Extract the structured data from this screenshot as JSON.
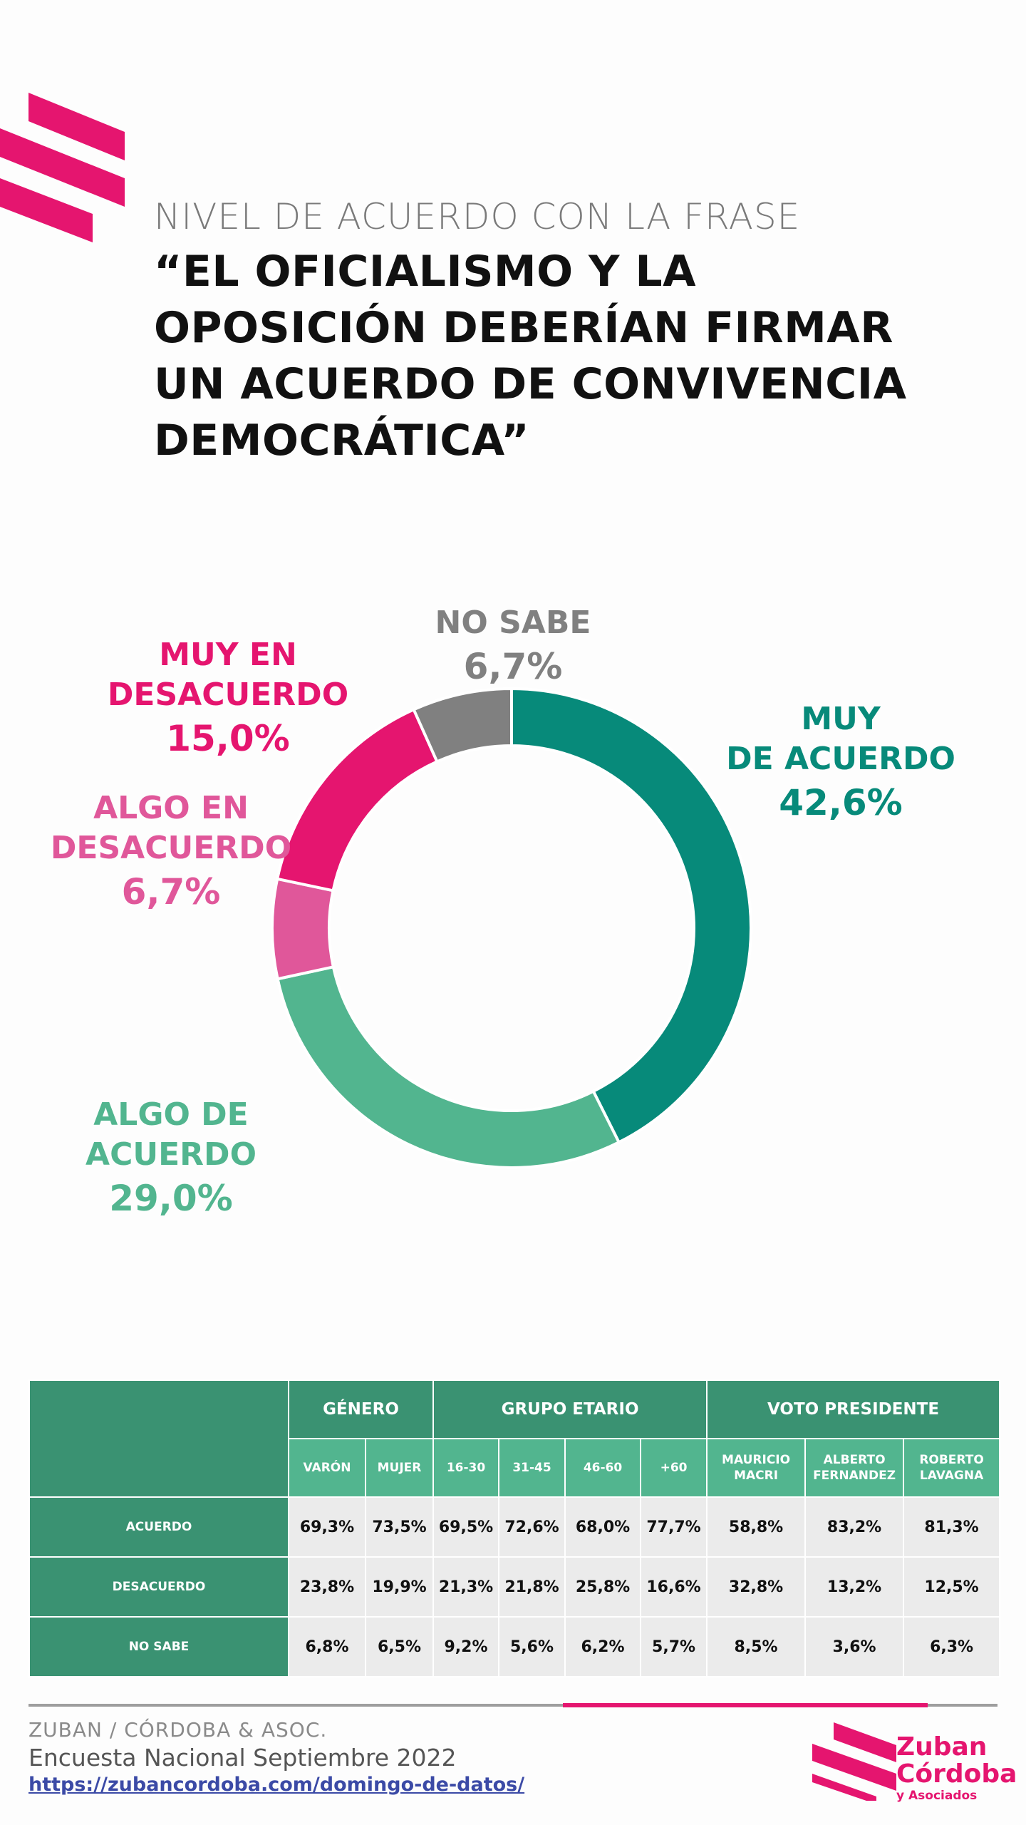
{
  "header": {
    "subtitle": "NIVEL DE ACUERDO CON LA FRASE",
    "title": "“EL OFICIALISMO Y LA\nOPOSICIÓN DEBERÍAN FIRMAR\nUN ACUERDO DE CONVIVENCIA\nDEMOCRÁTICA”"
  },
  "chart_data": {
    "type": "pie",
    "donut": true,
    "start": "12 o'clock",
    "direction": "clockwise",
    "slices": [
      {
        "label": "MUY\nDE ACUERDO",
        "value": 42.6,
        "display": "42,6%",
        "color": "#078a7a"
      },
      {
        "label": "ALGO DE\nACUERDO",
        "value": 29.0,
        "display": "29,0%",
        "color": "#52b58f"
      },
      {
        "label": "ALGO EN\nDESACUERDO",
        "value": 6.7,
        "display": "6,7%",
        "color": "#e0579a"
      },
      {
        "label": "MUY EN\nDESACUERDO",
        "value": 15.0,
        "display": "15,0%",
        "color": "#e5156f"
      },
      {
        "label": "NO SABE",
        "value": 6.7,
        "display": "6,7%",
        "color": "#808080"
      }
    ]
  },
  "table": {
    "groups": [
      {
        "label": "GÉNERO",
        "span": 2
      },
      {
        "label": "GRUPO ETARIO",
        "span": 4
      },
      {
        "label": "VOTO PRESIDENTE",
        "span": 3
      }
    ],
    "columns": [
      "VARÓN",
      "MUJER",
      "16-30",
      "31-45",
      "46-60",
      "+60",
      "MAURICIO\nMACRI",
      "ALBERTO\nFERNANDEZ",
      "ROBERTO\nLAVAGNA"
    ],
    "rows": [
      {
        "label": "ACUERDO",
        "values": [
          "69,3%",
          "73,5%",
          "69,5%",
          "72,6%",
          "68,0%",
          "77,7%",
          "58,8%",
          "83,2%",
          "81,3%"
        ]
      },
      {
        "label": "DESACUERDO",
        "values": [
          "23,8%",
          "19,9%",
          "21,3%",
          "21,8%",
          "25,8%",
          "16,6%",
          "32,8%",
          "13,2%",
          "12,5%"
        ]
      },
      {
        "label": "NO SABE",
        "values": [
          "6,8%",
          "6,5%",
          "9,2%",
          "5,6%",
          "6,2%",
          "5,7%",
          "8,5%",
          "3,6%",
          "6,3%"
        ]
      }
    ]
  },
  "footer": {
    "org": "ZUBAN / CÓRDOBA & ASOC.",
    "survey": "Encuesta Nacional Septiembre 2022",
    "link": "https://zubancordoba.com/domingo-de-datos/"
  },
  "logo": {
    "line1": "Zuban",
    "line2": "Córdoba",
    "line3": "y Asociados",
    "color": "#e5156f"
  }
}
